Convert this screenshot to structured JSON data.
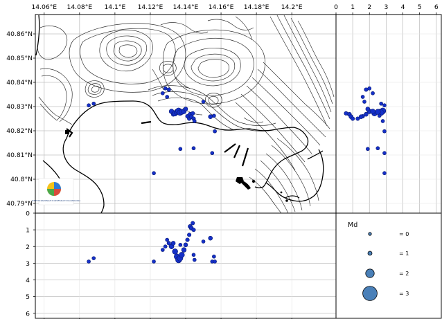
{
  "map": {
    "lon_ticks": [
      "14.06°E",
      "14.08°E",
      "14.1°E",
      "14.12°E",
      "14.14°E",
      "14.16°E",
      "14.18°E",
      "14.2°E"
    ],
    "lat_ticks": [
      "40.86°N",
      "40.85°N",
      "40.84°N",
      "40.83°N",
      "40.82°N",
      "40.81°N",
      "40.8°N",
      "40.79°N"
    ],
    "lon_range": [
      14.055,
      14.225
    ],
    "lat_range": [
      40.786,
      40.868
    ],
    "logo_text": "ISTITUTO NAZIONALE DI GEOFISICA E VULCANOLOGIA"
  },
  "side_panel": {
    "x_ticks": [
      "0",
      "1",
      "2",
      "3",
      "4",
      "5",
      "6"
    ]
  },
  "bottom_panel": {
    "y_ticks": [
      "0",
      "1",
      "2",
      "3",
      "4",
      "5",
      "6"
    ]
  },
  "legend": {
    "title": "Md",
    "items": [
      {
        "label": "= 0",
        "md": 0
      },
      {
        "label": "= 1",
        "md": 1
      },
      {
        "label": "= 2",
        "md": 2
      },
      {
        "label": "= 3",
        "md": 3
      }
    ]
  },
  "colors": {
    "event_fill": "#1530c8",
    "legend_fill": "#4a80b8",
    "grid": "#c0c0c0",
    "contour": "#333333"
  },
  "chart_data": {
    "type": "scatter",
    "description_fields": [
      "lon",
      "lat",
      "depth_km",
      "md"
    ],
    "events": [
      {
        "lon": 14.0852,
        "lat": 40.8305,
        "depth": 2.9,
        "md": 0.4
      },
      {
        "lon": 14.088,
        "lat": 40.8312,
        "depth": 2.7,
        "md": 0.4
      },
      {
        "lon": 14.122,
        "lat": 40.8025,
        "depth": 2.9,
        "md": 0.4
      },
      {
        "lon": 14.127,
        "lat": 40.8355,
        "depth": 2.2,
        "md": 0.4
      },
      {
        "lon": 14.1285,
        "lat": 40.8375,
        "depth": 2.0,
        "md": 0.4
      },
      {
        "lon": 14.1295,
        "lat": 40.834,
        "depth": 1.6,
        "md": 0.4
      },
      {
        "lon": 14.1305,
        "lat": 40.837,
        "depth": 1.8,
        "md": 0.5
      },
      {
        "lon": 14.132,
        "lat": 40.828,
        "depth": 2.0,
        "md": 0.8
      },
      {
        "lon": 14.133,
        "lat": 40.8268,
        "depth": 1.8,
        "md": 0.6
      },
      {
        "lon": 14.134,
        "lat": 40.8272,
        "depth": 2.3,
        "md": 1.0
      },
      {
        "lon": 14.135,
        "lat": 40.8278,
        "depth": 2.6,
        "md": 1.0
      },
      {
        "lon": 14.136,
        "lat": 40.8282,
        "depth": 2.8,
        "md": 1.2
      },
      {
        "lon": 14.1368,
        "lat": 40.8275,
        "depth": 2.7,
        "md": 1.1
      },
      {
        "lon": 14.1378,
        "lat": 40.8278,
        "depth": 2.5,
        "md": 1.0
      },
      {
        "lon": 14.139,
        "lat": 40.828,
        "depth": 2.2,
        "md": 0.8
      },
      {
        "lon": 14.14,
        "lat": 40.829,
        "depth": 1.9,
        "md": 0.6
      },
      {
        "lon": 14.141,
        "lat": 40.826,
        "depth": 1.6,
        "md": 0.5
      },
      {
        "lon": 14.142,
        "lat": 40.825,
        "depth": 1.3,
        "md": 0.5
      },
      {
        "lon": 14.1425,
        "lat": 40.8268,
        "depth": 0.8,
        "md": 0.6
      },
      {
        "lon": 14.1432,
        "lat": 40.8258,
        "depth": 0.9,
        "md": 0.6
      },
      {
        "lon": 14.144,
        "lat": 40.8272,
        "depth": 0.6,
        "md": 0.5
      },
      {
        "lon": 14.1445,
        "lat": 40.825,
        "depth": 1.0,
        "md": 0.5
      },
      {
        "lon": 14.137,
        "lat": 40.8125,
        "depth": 1.9,
        "md": 0.4
      },
      {
        "lon": 14.1445,
        "lat": 40.8128,
        "depth": 2.5,
        "md": 0.4
      },
      {
        "lon": 14.145,
        "lat": 40.824,
        "depth": 2.8,
        "md": 0.4
      },
      {
        "lon": 14.15,
        "lat": 40.832,
        "depth": 1.7,
        "md": 0.4
      },
      {
        "lon": 14.154,
        "lat": 40.8258,
        "depth": 1.5,
        "md": 0.6
      },
      {
        "lon": 14.155,
        "lat": 40.8108,
        "depth": 2.9,
        "md": 0.4
      },
      {
        "lon": 14.1565,
        "lat": 40.8198,
        "depth": 2.9,
        "md": 0.4
      },
      {
        "lon": 14.156,
        "lat": 40.8262,
        "depth": 2.6,
        "md": 0.4
      }
    ]
  }
}
